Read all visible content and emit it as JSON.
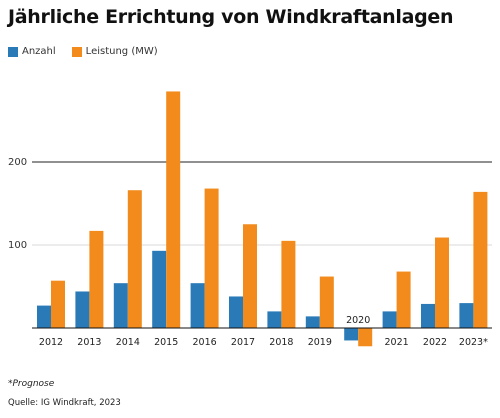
{
  "colors": {
    "anzahl": "#2a7ab8",
    "leistung": "#f28b1c",
    "grid": "#cccccc",
    "baseline": "#111111"
  },
  "chart_data": {
    "type": "bar",
    "title": "Jährliche Errichtung von Windkraftanlagen",
    "categories": [
      "2012",
      "2013",
      "2014",
      "2015",
      "2016",
      "2017",
      "2018",
      "2019",
      "2020",
      "2021",
      "2022",
      "2023*"
    ],
    "series": [
      {
        "name": "Anzahl",
        "values": [
          27,
          44,
          54,
          93,
          54,
          38,
          20,
          14,
          -15,
          20,
          29,
          30
        ]
      },
      {
        "name": "Leistung (MW)",
        "values": [
          57,
          117,
          166,
          285,
          168,
          125,
          105,
          62,
          -22,
          68,
          109,
          164
        ]
      }
    ],
    "yticks": [
      100,
      200
    ],
    "ylim": [
      -22,
      300
    ],
    "grid": true,
    "legend": "top-left"
  },
  "footer": {
    "note": "*Prognose",
    "source": "Quelle: IG Windkraft, 2023"
  }
}
